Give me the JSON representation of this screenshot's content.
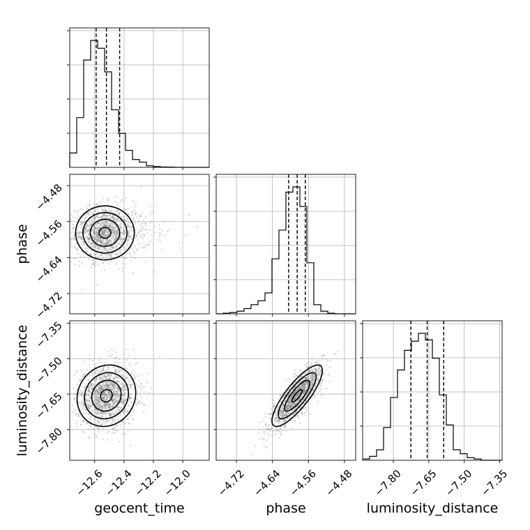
{
  "chart_data": {
    "type": "corner",
    "parameters": [
      "geocent_time",
      "phase",
      "luminosity_distance"
    ],
    "axis_labels": {
      "geocent_time": "geocent_time",
      "phase": "phase",
      "luminosity_distance": "luminosity_distance"
    },
    "ranges": {
      "geocent_time": [
        -12.77,
        -11.82
      ],
      "phase": [
        -4.765,
        -4.455
      ],
      "luminosity_distance": [
        -7.93,
        -7.34
      ]
    },
    "ticks": {
      "geocent_time": [
        -12.6,
        -12.4,
        -12.2,
        -12.0
      ],
      "phase": [
        -4.72,
        -4.64,
        -4.56,
        -4.48
      ],
      "luminosity_distance": [
        -7.8,
        -7.65,
        -7.5,
        -7.35
      ]
    },
    "tick_labels": {
      "geocent_time": [
        "−12.6",
        "−12.4",
        "−12.2",
        "−12.0"
      ],
      "phase": [
        "−4.72",
        "−4.64",
        "−4.56",
        "−4.48"
      ],
      "luminosity_distance": [
        "−7.80",
        "−7.65",
        "−7.50",
        "−7.35"
      ]
    },
    "quantiles": {
      "geocent_time": [
        -12.59,
        -12.52,
        -12.43
      ],
      "phase": [
        -4.604,
        -4.585,
        -4.567
      ],
      "luminosity_distance": [
        -7.726,
        -7.657,
        -7.587
      ]
    },
    "histograms": {
      "geocent_time": {
        "edges_range": [
          -12.77,
          -11.82
        ],
        "counts": [
          0.11,
          0.38,
          0.82,
          0.97,
          0.91,
          0.73,
          0.44,
          0.26,
          0.13,
          0.06,
          0.04,
          0.012,
          0.006,
          0.003,
          0.002,
          0.001,
          0,
          0,
          0,
          0
        ]
      },
      "phase": {
        "edges_range": [
          -4.765,
          -4.455
        ],
        "counts": [
          0,
          0.005,
          0.01,
          0.02,
          0.04,
          0.07,
          0.1,
          0.16,
          0.42,
          0.64,
          0.93,
          0.97,
          0.82,
          0.39,
          0.07,
          0.02,
          0.005,
          0,
          0,
          0
        ]
      },
      "luminosity_distance": {
        "edges_range": [
          -7.93,
          -7.34
        ],
        "counts": [
          0.01,
          0.03,
          0.08,
          0.25,
          0.48,
          0.69,
          0.84,
          0.91,
          0.97,
          0.92,
          0.78,
          0.5,
          0.27,
          0.08,
          0.05,
          0.02,
          0.01,
          0,
          0,
          0
        ]
      }
    },
    "joint": {
      "phase_vs_geocent_time": {
        "mean": [
          -12.53,
          -4.585
        ],
        "std": [
          0.1,
          0.03
        ],
        "corr": 0.0
      },
      "luminosity_distance_vs_geocent_time": {
        "mean": [
          -12.52,
          -7.657
        ],
        "std": [
          0.1,
          0.065
        ],
        "corr": 0.1
      },
      "luminosity_distance_vs_phase": {
        "mean": [
          -4.585,
          -7.657
        ],
        "std": [
          0.028,
          0.065
        ],
        "corr": 0.82
      }
    },
    "grid": true
  }
}
